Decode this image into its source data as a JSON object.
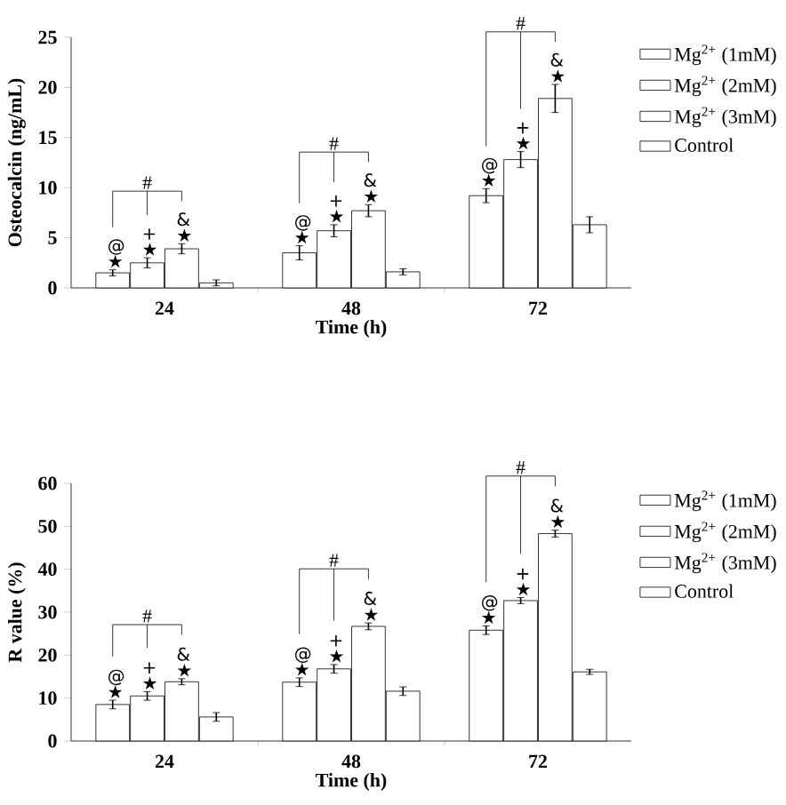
{
  "chart_data": [
    {
      "type": "bar",
      "xlabel": "Time (h)",
      "ylabel": "Osteocalcin (ng/mL)",
      "categories": [
        "24",
        "48",
        "72"
      ],
      "series": [
        {
          "name": "Mg$^{2+}$ (1mM)",
          "color": "#ffffff",
          "values": [
            1.5,
            3.5,
            9.2
          ],
          "errors": [
            0.3,
            0.7,
            0.7
          ],
          "value_labels": [
            "@ ★",
            "@ ★",
            "@ ★"
          ]
        },
        {
          "name": "Mg$^{2+}$ (2mM)",
          "color": "#ffffff",
          "values": [
            2.5,
            5.7,
            12.8
          ],
          "errors": [
            0.5,
            0.6,
            0.8
          ],
          "value_labels": [
            "+ ★",
            "+ ★",
            "+ ★"
          ]
        },
        {
          "name": "Mg$^{2+}$ (3mM)",
          "color": "#ffffff",
          "values": [
            3.9,
            7.7,
            18.9
          ],
          "errors": [
            0.5,
            0.6,
            1.4
          ],
          "value_labels": [
            "& ★",
            "& ★",
            "& ★"
          ]
        },
        {
          "name": "Control",
          "color": "#ffffff",
          "values": [
            0.5,
            1.6,
            6.3
          ],
          "errors": [
            0.3,
            0.3,
            0.8
          ]
        }
      ],
      "ylim": [
        0,
        25
      ],
      "yticks": [
        0,
        5,
        10,
        15,
        20,
        25
      ],
      "legend": "right",
      "grid": false,
      "annotations": [
        "#",
        "#",
        "#"
      ]
    },
    {
      "type": "bar",
      "xlabel": "Time (h)",
      "ylabel": "R value (%)",
      "categories": [
        "24",
        "48",
        "72"
      ],
      "series": [
        {
          "name": "Mg$^{2+}$ (1mM)",
          "color": "#ffffff",
          "values": [
            8.5,
            13.7,
            25.8
          ],
          "errors": [
            1,
            1,
            1
          ],
          "value_labels": [
            "@ ★",
            "@ ★",
            "@ ★"
          ]
        },
        {
          "name": "Mg$^{2+}$ (2mM)",
          "color": "#ffffff",
          "values": [
            10.5,
            16.8,
            32.7
          ],
          "errors": [
            1,
            1,
            0.7
          ],
          "value_labels": [
            "+ ★",
            "+ ★",
            "+ ★"
          ]
        },
        {
          "name": "Mg$^{2+}$ (3mM)",
          "color": "#ffffff",
          "values": [
            13.8,
            26.7,
            48.3
          ],
          "errors": [
            0.7,
            0.8,
            0.8
          ],
          "value_labels": [
            "& ★",
            "& ★",
            "& ★"
          ]
        },
        {
          "name": "Control",
          "color": "#ffffff",
          "values": [
            5.6,
            11.6,
            16.1
          ],
          "errors": [
            1,
            1,
            0.6
          ]
        }
      ],
      "ylim": [
        0,
        60
      ],
      "yticks": [
        0,
        10,
        20,
        30,
        40,
        50,
        60
      ],
      "legend": "right",
      "grid": false,
      "annotations": [
        "#",
        "#",
        "#"
      ]
    }
  ]
}
